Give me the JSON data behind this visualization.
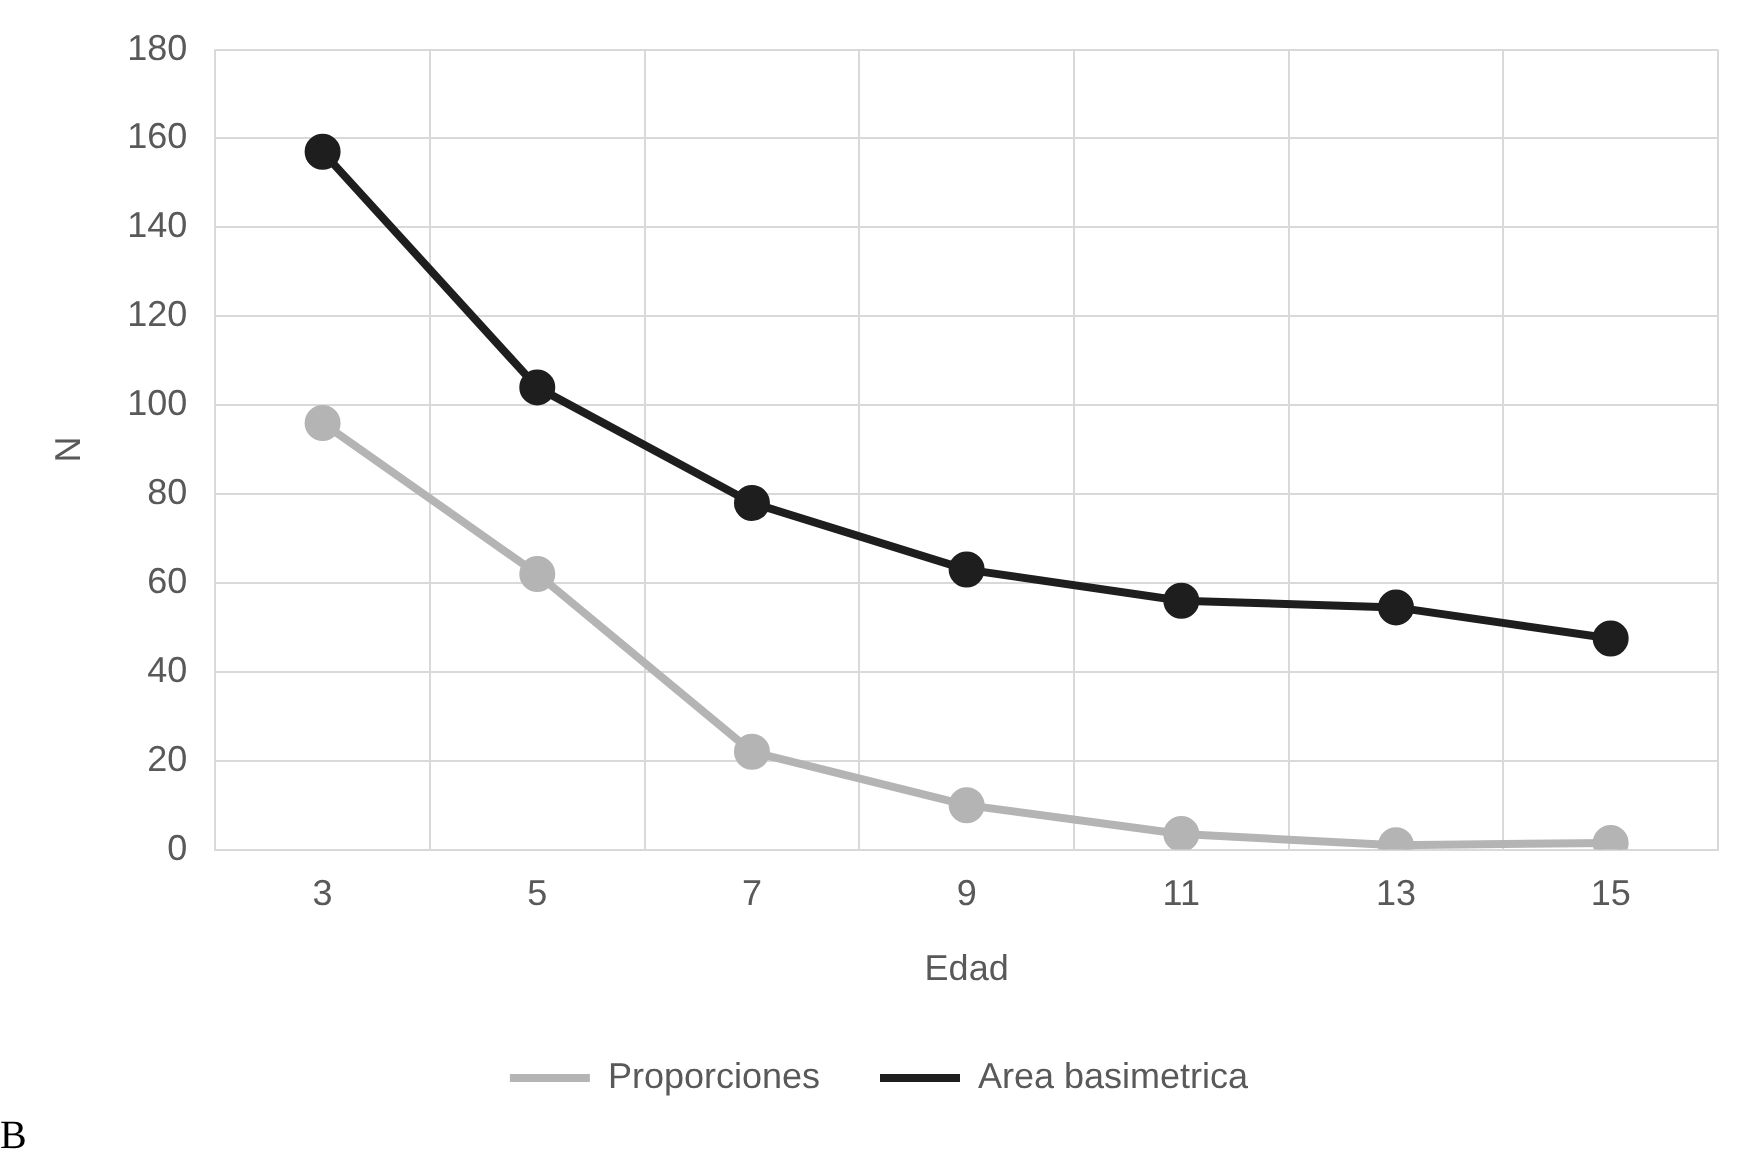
{
  "chart_data": {
    "type": "line",
    "xlabel": "Edad",
    "ylabel": "N",
    "categories": [
      "3",
      "5",
      "7",
      "9",
      "11",
      "13",
      "15"
    ],
    "series": [
      {
        "name": "Proporciones",
        "color": "#b4b4b4",
        "values": [
          96,
          62,
          22,
          10,
          3.5,
          1,
          1.5
        ]
      },
      {
        "name": "Area basimetrica",
        "color": "#1e1e1e",
        "values": [
          157,
          104,
          78,
          63,
          56,
          54.5,
          47.5
        ]
      }
    ],
    "ylim": [
      0,
      180
    ],
    "yticks": [
      0,
      20,
      40,
      60,
      80,
      100,
      120,
      140,
      160,
      180
    ],
    "grid": true,
    "legend": "bottom",
    "marker": "circle",
    "line_style": "solid",
    "annotations": [
      "B"
    ]
  }
}
